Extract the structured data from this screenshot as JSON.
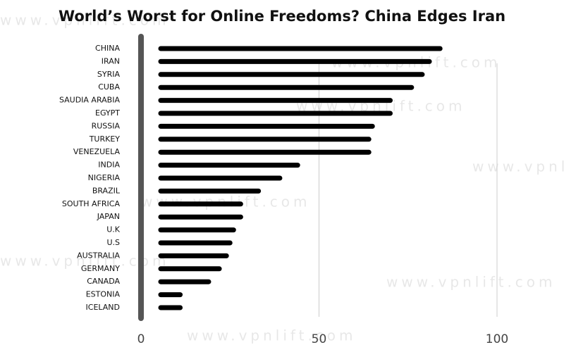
{
  "chart_data": {
    "type": "hbar",
    "title": "World’s Worst for Online Freedoms? China Edges Iran",
    "watermark": "www.vpnlift.com",
    "categories": [
      "CHINA",
      "IRAN",
      "SYRIA",
      "CUBA",
      "SAUDIA ARABIA",
      "EGYPT",
      "RUSSIA",
      "TURKEY",
      "VENEZUELA",
      "INDIA",
      "NIGERIA",
      "BRAZIL",
      "SOUTH AFRICA",
      "JAPAN",
      "U.K",
      "U.S",
      "AUSTRALIA",
      "GERMANY",
      "CANADA",
      "ESTONIA",
      "ICELAND"
    ],
    "values": [
      84,
      81,
      79,
      76,
      70,
      70,
      65,
      64,
      64,
      44,
      39,
      33,
      28,
      28,
      26,
      25,
      24,
      22,
      19,
      11,
      11
    ],
    "color": "#000000",
    "xlim": [
      0,
      100
    ],
    "xticks": [
      0,
      50,
      100
    ],
    "grid": true
  }
}
